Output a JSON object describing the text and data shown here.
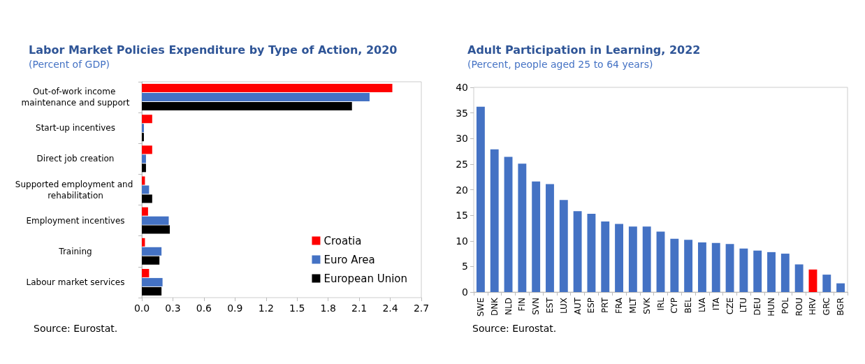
{
  "chart_data": [
    {
      "type": "bar",
      "orientation": "horizontal",
      "title": "Labor Market Policies Expenditure by Type of Action, 2020",
      "subtitle": "(Percent of GDP)",
      "categories": [
        "Out-of-work income maintenance and support",
        "Start-up incentives",
        "Direct job creation",
        "Supported employment and rehabilitation",
        "Employment incentives",
        "Training",
        "Labour market services"
      ],
      "series": [
        {
          "name": "Croatia",
          "color": "#ff0000",
          "values": [
            2.42,
            0.1,
            0.1,
            0.03,
            0.06,
            0.03,
            0.07
          ]
        },
        {
          "name": "Euro Area",
          "color": "#4472c4",
          "values": [
            2.2,
            0.02,
            0.04,
            0.07,
            0.26,
            0.19,
            0.2
          ]
        },
        {
          "name": "European Union",
          "color": "#000000",
          "values": [
            2.03,
            0.02,
            0.04,
            0.1,
            0.27,
            0.17,
            0.19
          ]
        }
      ],
      "xlim": [
        0,
        2.7
      ],
      "xticks": [
        {
          "value": 0,
          "label": "0.0"
        },
        0.3,
        0.6,
        0.9,
        1.2,
        1.5,
        1.8,
        2.1,
        2.4,
        2.7
      ],
      "legend": "bottom right",
      "grid": false,
      "annotations": [
        "Source: Eurostat."
      ]
    },
    {
      "type": "bar",
      "title": "Adult Participation in Learning, 2022",
      "subtitle": "(Percent, people aged 25 to 64 years)",
      "categories": [
        "SWE",
        "DNK",
        "NLD",
        "FIN",
        "SVN",
        "EST",
        "LUX",
        "AUT",
        "ESP",
        "PRT",
        "FRA",
        "MLT",
        "SVK",
        "IRL",
        "CYP",
        "BEL",
        "LVA",
        "ITA",
        "CZE",
        "LTU",
        "DEU",
        "HUN",
        "POL",
        "ROU",
        "HRV",
        "GRC",
        "BGR"
      ],
      "values": [
        36.2,
        27.9,
        26.4,
        25.1,
        21.6,
        21.1,
        18.0,
        15.8,
        15.3,
        13.8,
        13.3,
        12.8,
        12.8,
        11.8,
        10.4,
        10.2,
        9.7,
        9.6,
        9.4,
        8.5,
        8.1,
        7.8,
        7.5,
        5.4,
        4.4,
        3.4,
        1.7
      ],
      "colors": [
        "#4472c4",
        "#4472c4",
        "#4472c4",
        "#4472c4",
        "#4472c4",
        "#4472c4",
        "#4472c4",
        "#4472c4",
        "#4472c4",
        "#4472c4",
        "#4472c4",
        "#4472c4",
        "#4472c4",
        "#4472c4",
        "#4472c4",
        "#4472c4",
        "#4472c4",
        "#4472c4",
        "#4472c4",
        "#4472c4",
        "#4472c4",
        "#4472c4",
        "#4472c4",
        "#4472c4",
        "#ff0000",
        "#4472c4",
        "#4472c4"
      ],
      "ylim": [
        0,
        40
      ],
      "yticks": [
        0,
        5,
        10,
        15,
        20,
        25,
        30,
        35,
        40
      ],
      "grid": false,
      "annotations": [
        "Source: Eurostat."
      ]
    }
  ]
}
